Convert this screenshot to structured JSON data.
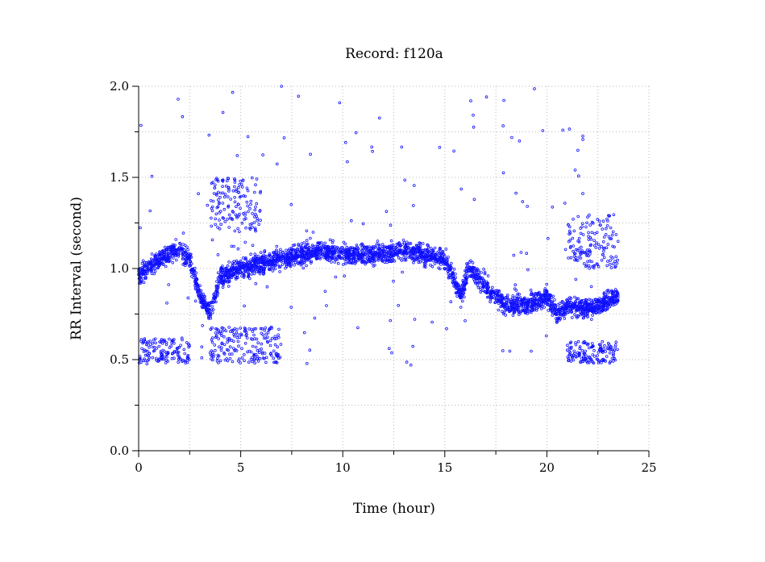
{
  "chart_data": {
    "type": "scatter",
    "title": "Record:  f120a",
    "xlabel": "Time (hour)",
    "ylabel": "RR Interval (second)",
    "xlim": [
      0,
      25
    ],
    "ylim": [
      0,
      2
    ],
    "x_ticks": [
      0,
      5,
      10,
      15,
      20,
      25
    ],
    "x_tick_labels": [
      "0",
      "5",
      "10",
      "15",
      "20",
      "25"
    ],
    "y_ticks": [
      0,
      0.5,
      1,
      1.5,
      2
    ],
    "y_tick_labels": [
      "0.0",
      "0.5",
      "1.0",
      "1.5",
      "2.0"
    ],
    "grid": true,
    "marker": "small open circle",
    "point_color": "#1010ff",
    "x_range_of_data": [
      0,
      23.5
    ],
    "main_band": [
      {
        "x": 0,
        "y": 0.97
      },
      {
        "x": 0.5,
        "y": 1.0
      },
      {
        "x": 1,
        "y": 1.05
      },
      {
        "x": 1.5,
        "y": 1.08
      },
      {
        "x": 2,
        "y": 1.1
      },
      {
        "x": 2.5,
        "y": 1.05
      },
      {
        "x": 3,
        "y": 0.85
      },
      {
        "x": 3.5,
        "y": 0.75
      },
      {
        "x": 4,
        "y": 0.95
      },
      {
        "x": 5,
        "y": 1.0
      },
      {
        "x": 6,
        "y": 1.03
      },
      {
        "x": 7,
        "y": 1.05
      },
      {
        "x": 8,
        "y": 1.08
      },
      {
        "x": 9,
        "y": 1.1
      },
      {
        "x": 10,
        "y": 1.08
      },
      {
        "x": 11,
        "y": 1.07
      },
      {
        "x": 12,
        "y": 1.08
      },
      {
        "x": 13,
        "y": 1.1
      },
      {
        "x": 14,
        "y": 1.08
      },
      {
        "x": 15,
        "y": 1.05
      },
      {
        "x": 15.8,
        "y": 0.85
      },
      {
        "x": 16.2,
        "y": 1.0
      },
      {
        "x": 17,
        "y": 0.9
      },
      {
        "x": 18,
        "y": 0.8
      },
      {
        "x": 19,
        "y": 0.8
      },
      {
        "x": 20,
        "y": 0.85
      },
      {
        "x": 20.5,
        "y": 0.75
      },
      {
        "x": 21,
        "y": 0.8
      },
      {
        "x": 22,
        "y": 0.78
      },
      {
        "x": 23,
        "y": 0.82
      },
      {
        "x": 23.5,
        "y": 0.85
      }
    ],
    "secondary_clusters": [
      {
        "x_range": [
          0,
          2.5
        ],
        "y_range": [
          0.48,
          0.62
        ],
        "label": "lower cluster"
      },
      {
        "x_range": [
          3.5,
          7
        ],
        "y_range": [
          0.48,
          0.68
        ],
        "label": "lower cluster"
      },
      {
        "x_range": [
          3.5,
          6
        ],
        "y_range": [
          1.2,
          1.5
        ],
        "label": "upper cluster"
      },
      {
        "x_range": [
          21,
          23.5
        ],
        "y_range": [
          0.48,
          0.6
        ],
        "label": "lower cluster"
      },
      {
        "x_range": [
          21,
          23.5
        ],
        "y_range": [
          1.0,
          1.3
        ],
        "label": "upper cluster"
      }
    ]
  }
}
